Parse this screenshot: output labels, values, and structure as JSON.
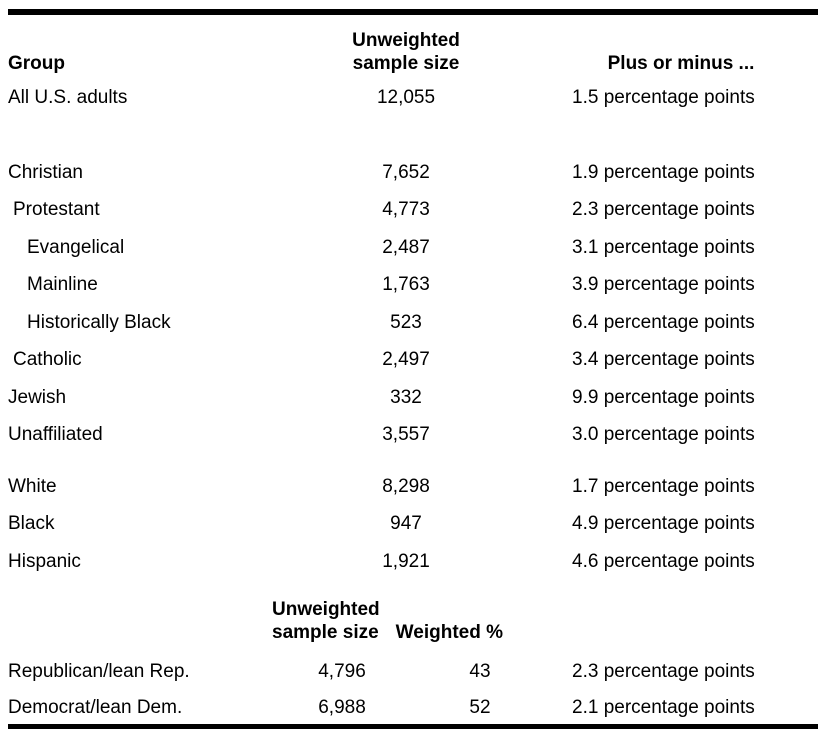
{
  "table": {
    "header": {
      "group": "Group",
      "sample_line1": "Unweighted",
      "sample_line2": "sample size",
      "moe": "Plus or minus ..."
    },
    "rows": [
      {
        "group": "All U.S. adults",
        "sample": "12,055",
        "moe": "1.5 percentage points"
      },
      {
        "group": "Christian",
        "sample": "7,652",
        "moe": "1.9 percentage points"
      },
      {
        "group": "Protestant",
        "sample": "4,773",
        "moe": "2.3 percentage points"
      },
      {
        "group": "Evangelical",
        "sample": "2,487",
        "moe": "3.1 percentage points"
      },
      {
        "group": "Mainline",
        "sample": "1,763",
        "moe": "3.9 percentage points"
      },
      {
        "group": "Historically Black",
        "sample": "523",
        "moe": "6.4 percentage points"
      },
      {
        "group": "Catholic",
        "sample": "2,497",
        "moe": "3.4 percentage points"
      },
      {
        "group": "Jewish",
        "sample": "332",
        "moe": "9.9 percentage points"
      },
      {
        "group": "Unaffiliated",
        "sample": "3,557",
        "moe": "3.0 percentage points"
      },
      {
        "group": "White",
        "sample": "8,298",
        "moe": "1.7 percentage points"
      },
      {
        "group": "Black",
        "sample": "947",
        "moe": "4.9 percentage points"
      },
      {
        "group": "Hispanic",
        "sample": "1,921",
        "moe": "4.6 percentage points"
      }
    ],
    "party_header": {
      "sample_line1": "Unweighted",
      "sample_line2": "sample size",
      "weighted": "Weighted %"
    },
    "party_rows": [
      {
        "group": "Republican/lean Rep.",
        "sample": "4,796",
        "weighted": "43",
        "moe": "2.3 percentage points"
      },
      {
        "group": "Democrat/lean Dem.",
        "sample": "6,988",
        "weighted": "52",
        "moe": "2.1 percentage points"
      }
    ]
  },
  "colors": {
    "text": "#000000",
    "rule": "#000000",
    "background": "#ffffff"
  },
  "chart_data": {
    "type": "table",
    "columns": [
      "Group",
      "Unweighted sample size",
      "Weighted %",
      "Plus or minus (percentage points)"
    ],
    "rows": [
      [
        "All U.S. adults",
        12055,
        null,
        1.5
      ],
      [
        "Christian",
        7652,
        null,
        1.9
      ],
      [
        "Protestant",
        4773,
        null,
        2.3
      ],
      [
        "Evangelical",
        2487,
        null,
        3.1
      ],
      [
        "Mainline",
        1763,
        null,
        3.9
      ],
      [
        "Historically Black",
        523,
        null,
        6.4
      ],
      [
        "Catholic",
        2497,
        null,
        3.4
      ],
      [
        "Jewish",
        332,
        null,
        9.9
      ],
      [
        "Unaffiliated",
        3557,
        null,
        3.0
      ],
      [
        "White",
        8298,
        null,
        1.7
      ],
      [
        "Black",
        947,
        null,
        4.9
      ],
      [
        "Hispanic",
        1921,
        null,
        4.6
      ],
      [
        "Republican/lean Rep.",
        4796,
        43,
        2.3
      ],
      [
        "Democrat/lean Dem.",
        6988,
        52,
        2.1
      ]
    ],
    "layout_hints": {
      "indent_level_1": [
        "Protestant",
        "Catholic"
      ],
      "indent_level_2": [
        "Evangelical",
        "Mainline",
        "Historically Black"
      ],
      "grid": false,
      "rules": "thick black rule above header and below last row"
    }
  }
}
